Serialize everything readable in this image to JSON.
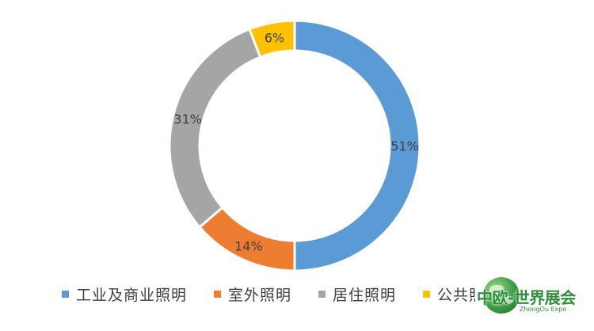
{
  "chart_data": {
    "type": "pie",
    "variant": "donut",
    "title": "",
    "categories": [
      "工业及商业照明",
      "室外照明",
      "居住照明",
      "公共照明"
    ],
    "values": [
      51,
      14,
      31,
      6
    ],
    "data_labels": [
      "51%",
      "14%",
      "31%",
      "6%"
    ],
    "colors": [
      "#5B9BD5",
      "#ED7D31",
      "#A5A5A5",
      "#FFC000"
    ],
    "legend_position": "bottom",
    "legend": [
      "工业及商业照明",
      "室外照明",
      "居住照明",
      "公共照明"
    ]
  },
  "watermark": {
    "title": "中欧-世界展会",
    "subtitle": "ZhongOu Expo"
  }
}
